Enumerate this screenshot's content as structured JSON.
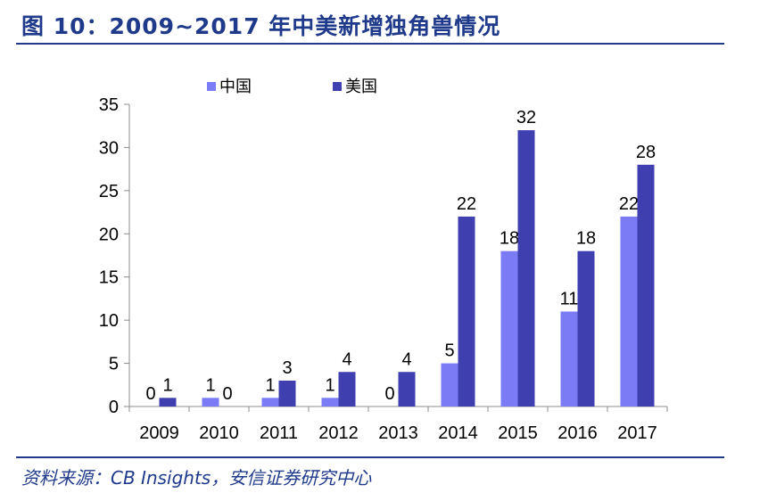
{
  "header": {
    "figure_title": "图 10：2009~2017 年中美新增独角兽情况"
  },
  "footer": {
    "source": "资料来源：CB Insights，安信证券研究中心"
  },
  "colors": {
    "title": "#1f3a8a",
    "china": "#7b7bf5",
    "usa": "#3f3fb0",
    "axis": "#8c8c8c"
  },
  "chart_data": {
    "type": "bar",
    "title": "",
    "xlabel": "",
    "ylabel": "",
    "categories": [
      "2009",
      "2010",
      "2011",
      "2012",
      "2013",
      "2014",
      "2015",
      "2016",
      "2017"
    ],
    "series": [
      {
        "name": "中国",
        "values": [
          0,
          1,
          1,
          1,
          0,
          5,
          18,
          11,
          22
        ]
      },
      {
        "name": "美国",
        "values": [
          1,
          0,
          3,
          4,
          4,
          22,
          32,
          18,
          28
        ]
      }
    ],
    "ylim": [
      0,
      35
    ],
    "yticks": [
      0,
      5,
      10,
      15,
      20,
      25,
      30,
      35
    ],
    "grid": false,
    "legend": "top",
    "data_labels": true
  }
}
